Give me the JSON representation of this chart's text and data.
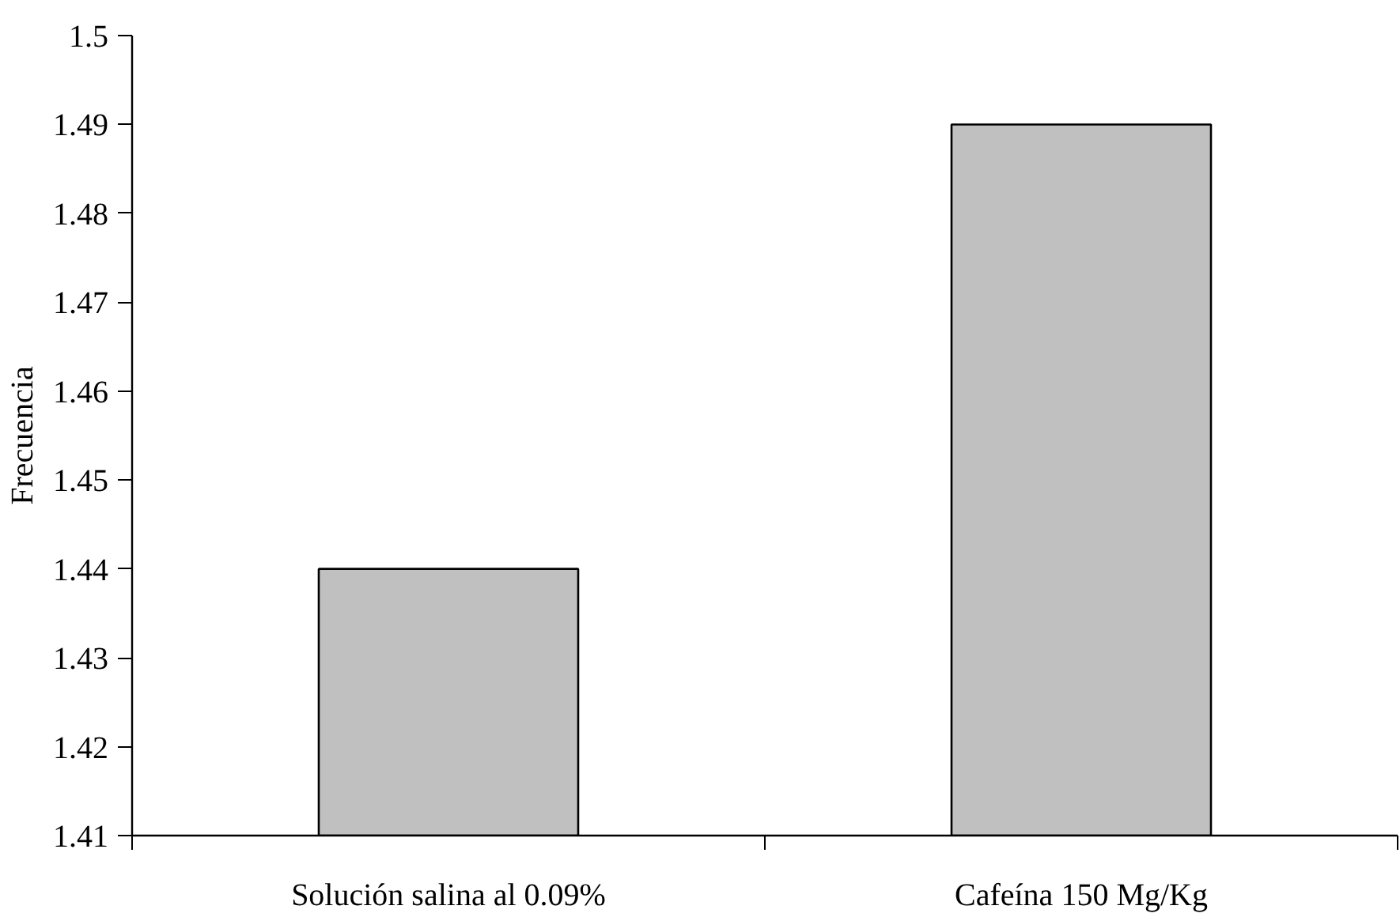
{
  "chart_data": {
    "type": "bar",
    "ylabel": "Frecuencia",
    "categories": [
      "Solución salina al 0.09%",
      "Cafeína 150 Mg/Kg"
    ],
    "values": [
      1.44,
      1.49
    ],
    "color": "#c0c0c0",
    "ylim": [
      1.41,
      1.5
    ],
    "yticks": [
      1.41,
      1.42,
      1.43,
      1.44,
      1.45,
      1.46,
      1.47,
      1.48,
      1.49,
      1.5
    ],
    "grid": false
  }
}
